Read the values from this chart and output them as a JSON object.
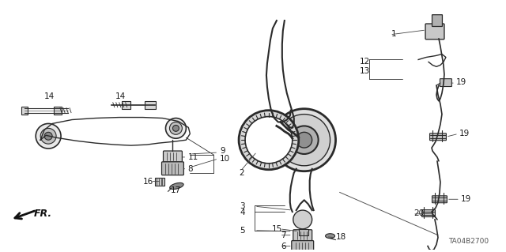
{
  "bg_color": "#ffffff",
  "diagram_code": "TA04B2700",
  "fr_label": "FR.",
  "line_color": "#2a2a2a",
  "label_color": "#1a1a1a",
  "part_fill": "#d8d8d8",
  "part_edge": "#2a2a2a",
  "figsize": [
    6.4,
    3.19
  ],
  "dpi": 100
}
